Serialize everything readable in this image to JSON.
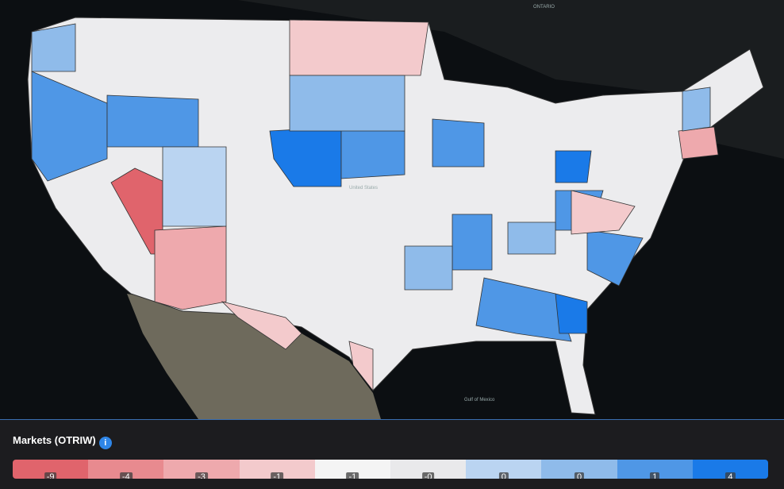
{
  "map": {
    "labels": [
      "ONTARIO",
      "United States",
      "Gulf of Mexico"
    ]
  },
  "legend": {
    "title": "Markets (OTRIW)",
    "items": [
      {
        "label": "-9",
        "color": "#e0646c"
      },
      {
        "label": "-4",
        "color": "#e88a8f"
      },
      {
        "label": "-3",
        "color": "#eea9ad"
      },
      {
        "label": "-1",
        "color": "#f3cacc"
      },
      {
        "label": "-1",
        "color": "#f4f4f4"
      },
      {
        "label": "-0",
        "color": "#e9e9eb"
      },
      {
        "label": "0",
        "color": "#bad4f1"
      },
      {
        "label": "0",
        "color": "#8fbbea"
      },
      {
        "label": "1",
        "color": "#4f97e6"
      },
      {
        "label": "4",
        "color": "#1a7ae8"
      }
    ]
  }
}
